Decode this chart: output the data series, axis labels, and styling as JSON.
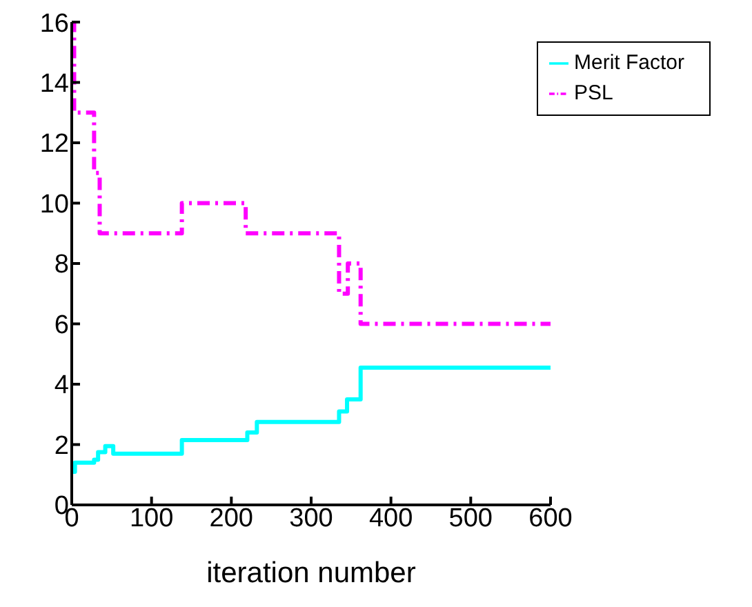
{
  "chart_data": {
    "type": "step",
    "xlabel": "iteration number",
    "xlim": [
      0,
      600
    ],
    "xticks": [
      0,
      100,
      200,
      300,
      400,
      500,
      600
    ],
    "ylim": [
      0,
      16
    ],
    "yticks": [
      0,
      2,
      4,
      6,
      8,
      10,
      12,
      14,
      16
    ],
    "grid": false,
    "legend": "top right",
    "marker": "none",
    "series": [
      {
        "name": "PSL",
        "color": "#ff00ff",
        "line_style": "dashed",
        "x": [
          0,
          3,
          28,
          35,
          138,
          218,
          335,
          346,
          362,
          600
        ],
        "values": [
          16,
          13,
          11,
          9,
          10,
          9,
          7,
          8,
          6,
          6
        ]
      },
      {
        "name": "Merit Factor",
        "color": "#00ffff",
        "line_style": "solid",
        "x": [
          0,
          4,
          28,
          33,
          42,
          52,
          138,
          220,
          232,
          335,
          345,
          362,
          600
        ],
        "values": [
          1.1,
          1.4,
          1.5,
          1.75,
          1.95,
          1.7,
          2.15,
          2.4,
          2.75,
          3.1,
          3.5,
          4.55,
          4.55
        ]
      }
    ]
  }
}
